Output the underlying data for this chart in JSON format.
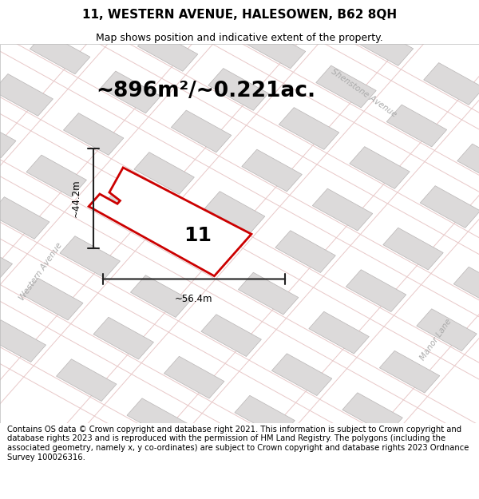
{
  "title_line1": "11, WESTERN AVENUE, HALESOWEN, B62 8QH",
  "title_line2": "Map shows position and indicative extent of the property.",
  "area_text": "~896m²/~0.221ac.",
  "property_number": "11",
  "dim_width": "~56.4m",
  "dim_height": "~44.2m",
  "street_label_west": "Western Avenue",
  "street_label_shen": "Shenstone Avenue",
  "street_label_manor": "Manor Lane",
  "footer_text": "Contains OS data © Crown copyright and database right 2021. This information is subject to Crown copyright and database rights 2023 and is reproduced with the permission of HM Land Registry. The polygons (including the associated geometry, namely x, y co-ordinates) are subject to Crown copyright and database rights 2023 Ordnance Survey 100026316.",
  "map_bg": "#f7f3f3",
  "road_outline_color": "#e8c8c8",
  "road_fill_color": "#f7f3f3",
  "building_color": "#dcdada",
  "building_edge": "#b8b4b4",
  "plot_color_red": "#cc0000",
  "plot_fill": "#ffffff",
  "dim_color": "#222222",
  "street_label_color": "#aaaaaa",
  "title_fontsize": 11,
  "subtitle_fontsize": 9,
  "area_fontsize": 19,
  "number_fontsize": 18,
  "footer_fontsize": 7.2,
  "street_fontsize": 7.5
}
